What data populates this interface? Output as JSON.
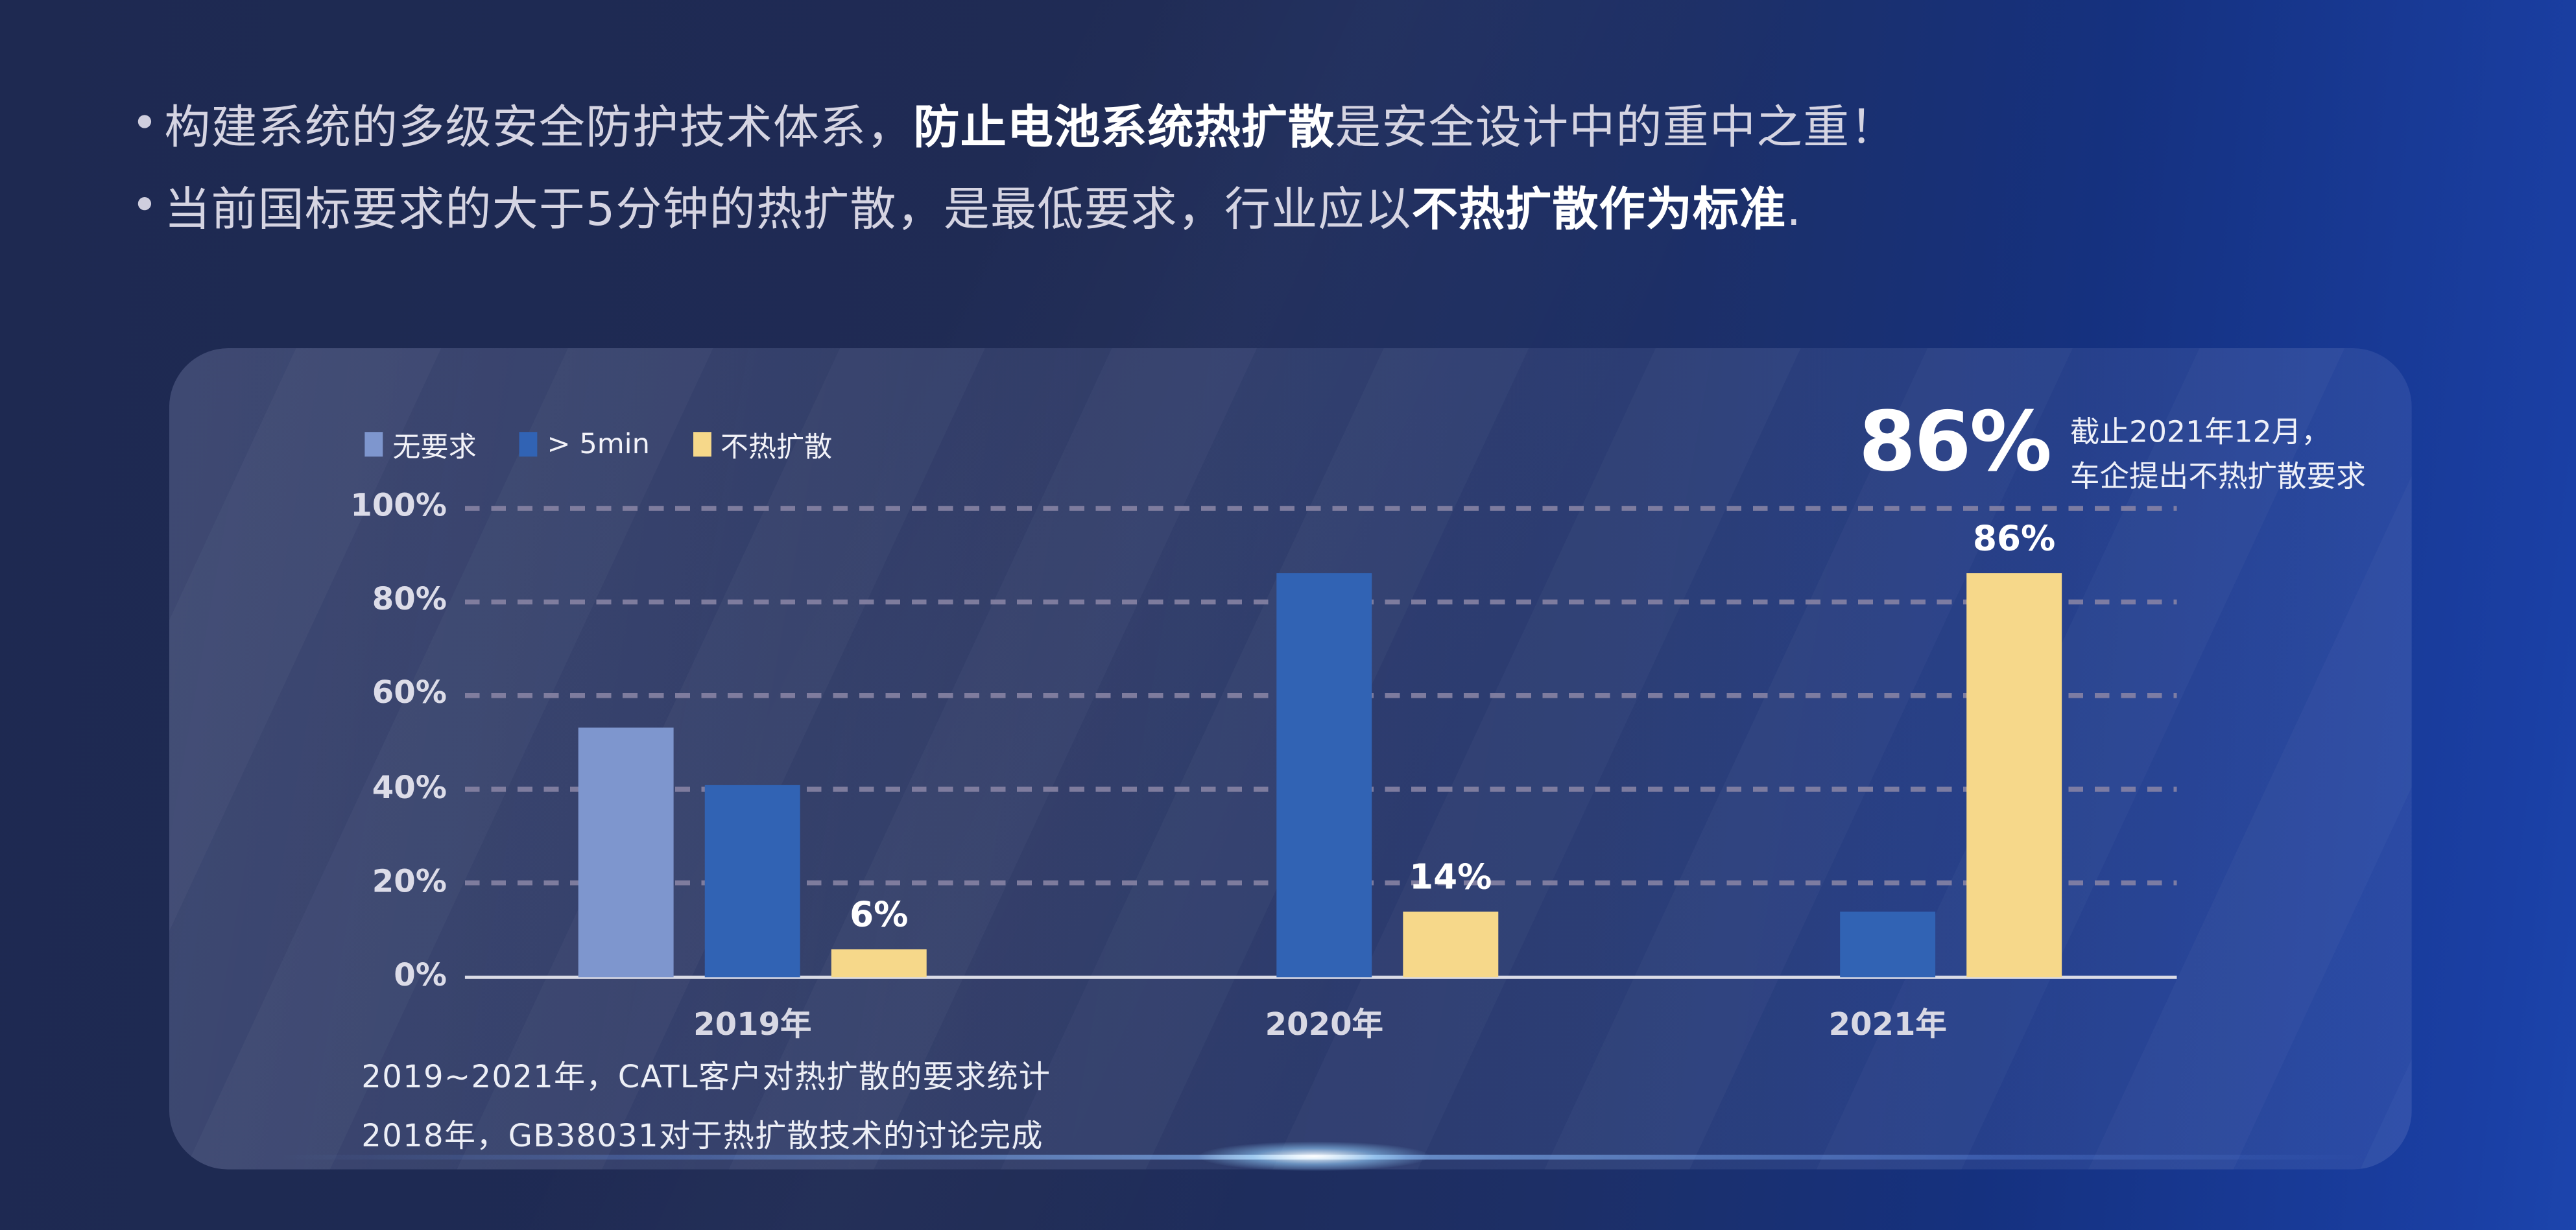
{
  "slide": {
    "bullets": [
      {
        "pre": "构建系统的多级安全防护技术体系，",
        "bold": "防止电池系统热扩散",
        "post": "是安全设计中的重中之重！"
      },
      {
        "pre": "当前国标要求的大于5分钟的热扩散，是最低要求，行业应以",
        "bold": "不热扩散作为标准",
        "post": "."
      }
    ]
  },
  "panel": {
    "callout": {
      "value": "86%",
      "line1": "截止2021年12月，",
      "line2": "车企提出不热扩散要求"
    },
    "captions": [
      "2019~2021年，CATL客户对热扩散的要求统计",
      "2018年，GB38031对于热扩散技术的讨论完成"
    ]
  },
  "colors": {
    "series_no_requirement": "#7e96ce",
    "series_gt5min": "#3163b4",
    "series_no_propagation": "#f6d88a",
    "gridline": "#8b86a6",
    "axis_line": "#dadbe6",
    "background_left": "#1e2951",
    "background_right": "#1a3fa4"
  },
  "chart_data": {
    "type": "bar",
    "title": "2019~2021年，CATL客户对热扩散的要求统计",
    "categories": [
      "2019年",
      "2020年",
      "2021年"
    ],
    "series": [
      {
        "name": "无要求",
        "color": "#7e96ce",
        "values": [
          53,
          null,
          null
        ],
        "labels": [
          null,
          null,
          null
        ]
      },
      {
        "name": "> 5min",
        "color": "#3163b4",
        "values": [
          41,
          86,
          14
        ],
        "labels": [
          null,
          null,
          null
        ]
      },
      {
        "name": "不热扩散",
        "color": "#f6d88a",
        "values": [
          6,
          14,
          86
        ],
        "labels": [
          "6%",
          "14%",
          "86%"
        ]
      }
    ],
    "yticks": [
      "100%",
      "80%",
      "60%",
      "40%",
      "20%",
      "0%"
    ],
    "ylim": [
      0,
      100
    ],
    "grid": "horizontal-dashed",
    "legend_position": "top-left",
    "annotation": {
      "value": "86%",
      "text": "截止2021年12月，车企提出不热扩散要求"
    }
  }
}
